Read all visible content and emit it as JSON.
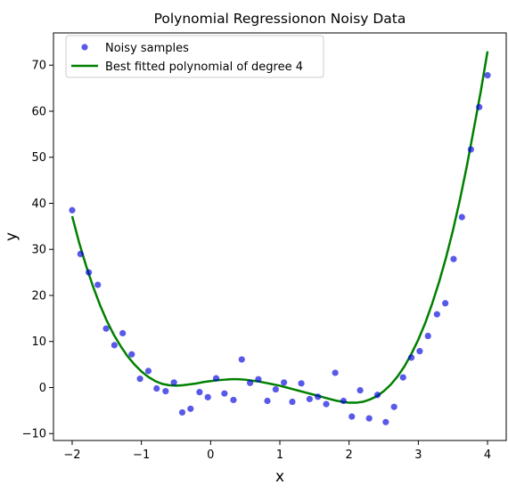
{
  "chart_data": {
    "type": "scatter",
    "title": "Polynomial Regressionon Noisy Data",
    "xlabel": "x",
    "ylabel": "y",
    "xlim": [
      -2.27,
      4.27
    ],
    "ylim": [
      -11.5,
      77.0
    ],
    "xticks": [
      -2,
      -1,
      0,
      1,
      2,
      3,
      4
    ],
    "yticks": [
      -10,
      0,
      10,
      20,
      30,
      40,
      50,
      60,
      70
    ],
    "legend_position": "upper-left",
    "colors": {
      "samples": "#0000dd",
      "fit": "#008000"
    },
    "series": [
      {
        "name": "Noisy samples",
        "kind": "scatter",
        "x": [
          -2.0,
          -1.88,
          -1.76,
          -1.63,
          -1.51,
          -1.39,
          -1.27,
          -1.14,
          -1.02,
          -0.9,
          -0.78,
          -0.65,
          -0.53,
          -0.41,
          -0.29,
          -0.16,
          -0.04,
          0.08,
          0.2,
          0.33,
          0.45,
          0.57,
          0.69,
          0.82,
          0.94,
          1.06,
          1.18,
          1.31,
          1.43,
          1.55,
          1.67,
          1.8,
          1.92,
          2.04,
          2.16,
          2.29,
          2.41,
          2.53,
          2.65,
          2.78,
          2.9,
          3.02,
          3.14,
          3.27,
          3.39,
          3.51,
          3.63,
          3.76,
          3.88,
          4.0
        ],
        "y": [
          38.5,
          29.0,
          25.0,
          22.3,
          12.8,
          9.2,
          11.8,
          7.2,
          1.9,
          3.6,
          -0.2,
          -0.8,
          1.1,
          -5.4,
          -4.6,
          -1.0,
          -2.1,
          2.0,
          -1.3,
          -2.7,
          6.1,
          1.0,
          1.8,
          -2.9,
          -0.4,
          1.1,
          -3.1,
          0.9,
          -2.5,
          -2.0,
          -3.6,
          3.2,
          -2.9,
          -6.3,
          -0.6,
          -6.7,
          -1.6,
          -7.5,
          -4.2,
          2.2,
          6.5,
          7.9,
          11.2,
          15.9,
          18.3,
          27.9,
          37.0,
          51.7,
          60.9,
          67.8
        ]
      },
      {
        "name": "Best fitted polynomial of degree 4",
        "kind": "line",
        "x": [
          -2.0,
          -1.9,
          -1.8,
          -1.7,
          -1.6,
          -1.5,
          -1.4,
          -1.3,
          -1.2,
          -1.1,
          -1.0,
          -0.9,
          -0.8,
          -0.7,
          -0.6,
          -0.5,
          -0.4,
          -0.3,
          -0.2,
          -0.1,
          0.0,
          0.1,
          0.2,
          0.3,
          0.4,
          0.5,
          0.6,
          0.7,
          0.8,
          0.9,
          1.0,
          1.1,
          1.2,
          1.3,
          1.4,
          1.5,
          1.6,
          1.7,
          1.8,
          1.9,
          2.0,
          2.1,
          2.2,
          2.3,
          2.4,
          2.5,
          2.6,
          2.7,
          2.8,
          2.9,
          3.0,
          3.1,
          3.2,
          3.3,
          3.4,
          3.5,
          3.6,
          3.7,
          3.8,
          3.9,
          4.0
        ],
        "y": [
          37.2,
          31.5,
          26.5,
          22.0,
          18.0,
          14.5,
          11.5,
          9.0,
          6.8,
          5.0,
          3.5,
          2.3,
          1.4,
          0.8,
          0.5,
          0.4,
          0.5,
          0.7,
          0.9,
          1.2,
          1.4,
          1.6,
          1.7,
          1.8,
          1.8,
          1.7,
          1.5,
          1.3,
          1.0,
          0.7,
          0.4,
          0.0,
          -0.4,
          -0.8,
          -1.2,
          -1.6,
          -2.0,
          -2.4,
          -2.8,
          -3.1,
          -3.3,
          -3.3,
          -3.1,
          -2.6,
          -1.9,
          -0.8,
          0.6,
          2.4,
          4.6,
          7.3,
          10.4,
          14.0,
          18.2,
          22.9,
          28.2,
          34.1,
          40.7,
          48.0,
          56.0,
          64.1,
          73.0
        ]
      }
    ]
  }
}
